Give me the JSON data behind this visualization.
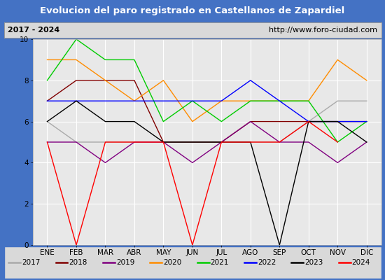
{
  "title": "Evolucion del paro registrado en Castellanos de Zapardiel",
  "subtitle_left": "2017 - 2024",
  "subtitle_right": "http://www.foro-ciudad.com",
  "months": [
    "ENE",
    "FEB",
    "MAR",
    "ABR",
    "MAY",
    "JUN",
    "JUL",
    "AGO",
    "SEP",
    "OCT",
    "NOV",
    "DIC"
  ],
  "series": {
    "2017": {
      "color": "#aaaaaa",
      "data": [
        6,
        5,
        5,
        5,
        5,
        5,
        5,
        5,
        5,
        6,
        7,
        7
      ]
    },
    "2018": {
      "color": "#800000",
      "data": [
        7,
        8,
        8,
        8,
        5,
        5,
        5,
        6,
        6,
        6,
        6,
        6
      ]
    },
    "2019": {
      "color": "#800080",
      "data": [
        5,
        5,
        4,
        5,
        5,
        4,
        5,
        6,
        5,
        5,
        4,
        5
      ]
    },
    "2020": {
      "color": "#ff8c00",
      "data": [
        9,
        9,
        8,
        7,
        8,
        6,
        7,
        7,
        7,
        7,
        9,
        8
      ]
    },
    "2021": {
      "color": "#00cc00",
      "data": [
        8,
        10,
        9,
        9,
        6,
        7,
        6,
        7,
        7,
        7,
        5,
        6
      ]
    },
    "2022": {
      "color": "#0000ff",
      "data": [
        7,
        7,
        7,
        7,
        7,
        7,
        7,
        8,
        7,
        6,
        6,
        6
      ]
    },
    "2023": {
      "color": "#000000",
      "data": [
        6,
        7,
        6,
        6,
        5,
        5,
        5,
        5,
        0,
        6,
        6,
        5
      ]
    },
    "2024": {
      "color": "#ff0000",
      "data": [
        5,
        0,
        5,
        5,
        5,
        0,
        5,
        5,
        5,
        6,
        5,
        null
      ]
    }
  },
  "ylim": [
    0,
    10
  ],
  "yticks": [
    0,
    2,
    4,
    6,
    8,
    10
  ],
  "title_bg_color": "#4472c4",
  "title_text_color": "#ffffff",
  "subtitle_bg_color": "#d9d9d9",
  "plot_bg_color": "#e8e8e8",
  "grid_color": "#ffffff",
  "outer_bg_color": "#4472c4",
  "legend_bg_color": "#d9d9d9",
  "legend_border_color": "#4472c4"
}
